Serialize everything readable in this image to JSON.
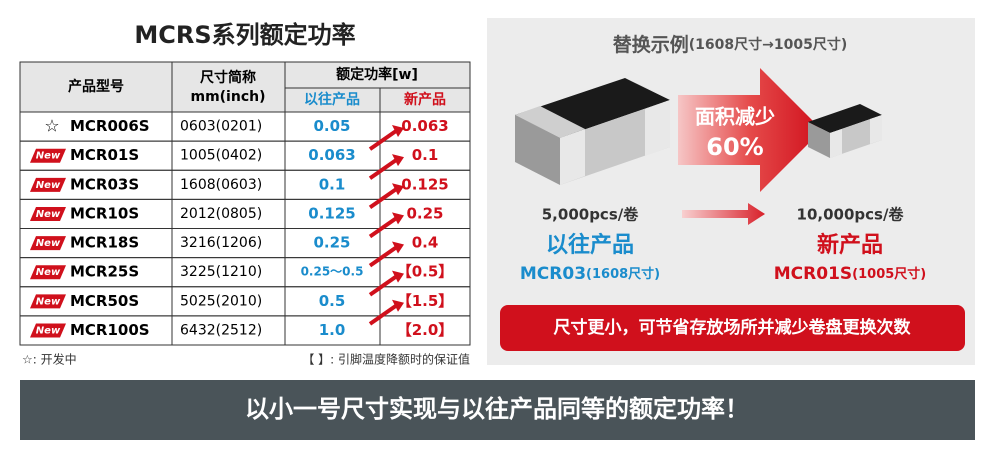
{
  "left": {
    "title": "MCRS系列额定功率",
    "header": {
      "col1": "产品型号",
      "col2_line1": "尺寸简称",
      "col2_line2": "mm(inch)",
      "col3": "额定功率[w]",
      "old": "以往产品",
      "new": "新产品"
    },
    "rows": [
      [
        "☆",
        "MCR006S",
        "0603(0201)",
        "0.05",
        "0.063"
      ],
      [
        "New",
        "MCR01S",
        "1005(0402)",
        "0.063",
        "0.1"
      ],
      [
        "New",
        "MCR03S",
        "1608(0603)",
        "0.1",
        "0.125"
      ],
      [
        "New",
        "MCR10S",
        "2012(0805)",
        "0.125",
        "0.25"
      ],
      [
        "New",
        "MCR18S",
        "3216(1206)",
        "0.25",
        "0.4"
      ],
      [
        "New",
        "MCR25S",
        "3225(1210)",
        "0.25～0.5",
        "【0.5】"
      ],
      [
        "New",
        "MCR50S",
        "5025(2010)",
        "0.5",
        "【1.5】"
      ],
      [
        "New",
        "MCR100S",
        "6432(2512)",
        "1.0",
        "【2.0】"
      ]
    ],
    "note_left": "☆: 开发中",
    "note_right": "【 】: 引脚温度降额时的保证值"
  },
  "right": {
    "title": "替换示例",
    "title_suffix": "(1608尺寸→1005尺寸)",
    "arrow_line1": "面积减少",
    "arrow_line2": "60%",
    "old_qty": "5,000pcs/卷",
    "old_label": "以往产品",
    "old_part": "MCR03",
    "old_size": "(1608尺寸)",
    "new_qty": "10,000pcs/卷",
    "new_label": "新产品",
    "new_part": "MCR01S",
    "new_size": "(1005尺寸)",
    "banner": "尺寸更小，可节省存放场所并减少卷盘更换次数"
  },
  "footer": "以小一号尺寸实现与以往产品同等的额定功率！"
}
